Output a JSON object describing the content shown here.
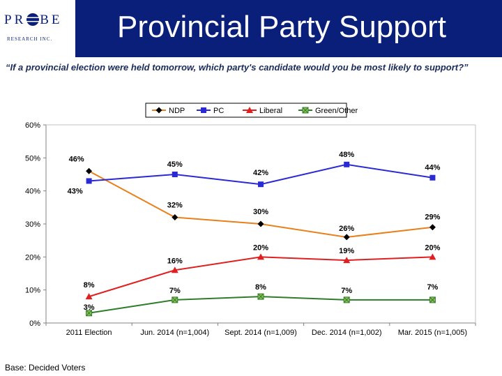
{
  "header": {
    "logo_main": "PR BE",
    "logo_sub": "RESEARCH INC.",
    "title": "Provincial Party Support"
  },
  "question": "“If a provincial election were held tomorrow, which party's candidate would you be most likely to support?”",
  "footer": {
    "base": "Base: Decided Voters"
  },
  "chart_data": {
    "type": "line",
    "categories": [
      "2011 Election",
      "Jun. 2014 (n=1,004)",
      "Sept. 2014 (n=1,009)",
      "Dec. 2014 (n=1,002)",
      "Mar. 2015 (n=1,005)"
    ],
    "yticks": [
      "0%",
      "10%",
      "20%",
      "30%",
      "40%",
      "50%",
      "60%"
    ],
    "ylim": [
      0,
      60
    ],
    "legend_position": "top",
    "series": [
      {
        "name": "NDP",
        "color": "#e8801c",
        "marker": "diamond",
        "marker_color": "#000000",
        "values": [
          46,
          32,
          30,
          26,
          29
        ],
        "labels": [
          "46%",
          "32%",
          "30%",
          "26%",
          "29%"
        ]
      },
      {
        "name": "PC",
        "color": "#2a2ad4",
        "marker": "square",
        "marker_color": "#2a2ad4",
        "values": [
          43,
          45,
          42,
          48,
          44
        ],
        "labels": [
          "43%",
          "45%",
          "42%",
          "48%",
          "44%"
        ]
      },
      {
        "name": "Liberal",
        "color": "#e02020",
        "marker": "triangle",
        "marker_color": "#e02020",
        "values": [
          8,
          16,
          20,
          19,
          20
        ],
        "labels": [
          "8%",
          "16%",
          "20%",
          "19%",
          "20%"
        ]
      },
      {
        "name": "Green/Other",
        "color": "#2f7d2a",
        "marker": "xsquare",
        "marker_color": "#2f7d2a",
        "values": [
          3,
          7,
          8,
          7,
          7
        ],
        "labels": [
          "3%",
          "7%",
          "8%",
          "7%",
          "7%"
        ]
      }
    ]
  }
}
